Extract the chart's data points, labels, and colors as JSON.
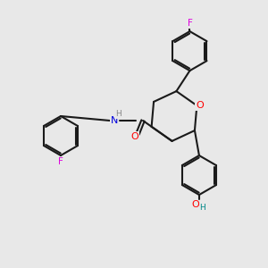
{
  "bg_color": "#e8e8e8",
  "bond_color": "#1a1a1a",
  "bond_lw": 1.5,
  "atom_colors": {
    "O": "#ff0000",
    "N": "#0000dd",
    "F": "#dd00dd",
    "H_gray": "#888888",
    "H_teal": "#008888"
  },
  "font_size": 7.5
}
